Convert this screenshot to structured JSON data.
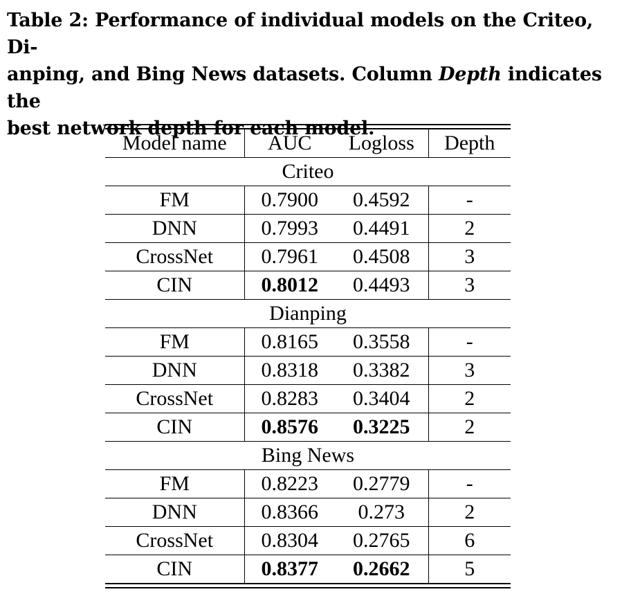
{
  "caption": {
    "line1": "Table 2: Performance of individual models on the Criteo, Di-",
    "line2_a": "anping, and Bing News datasets. Column ",
    "line2_b": "Depth",
    "line2_c": " indicates the",
    "line3": "best network depth for each model."
  },
  "table": {
    "headers": [
      "Model name",
      "AUC",
      "Logloss",
      "Depth"
    ],
    "groups": [
      {
        "name": "Criteo",
        "rows": [
          [
            "FM",
            "0.7900",
            "0.4592",
            "-"
          ],
          [
            "DNN",
            "0.7993",
            "0.4491",
            "2"
          ],
          [
            "CrossNet",
            "0.7961",
            "0.4508",
            "3"
          ],
          [
            "CIN",
            "0.8012",
            "0.4493",
            "3"
          ]
        ]
      },
      {
        "name": "Dianping",
        "rows": [
          [
            "FM",
            "0.8165",
            "0.3558",
            "-"
          ],
          [
            "DNN",
            "0.8318",
            "0.3382",
            "3"
          ],
          [
            "CrossNet",
            "0.8283",
            "0.3404",
            "2"
          ],
          [
            "CIN",
            "0.8576",
            "0.3225",
            "2"
          ]
        ]
      },
      {
        "name": "Bing News",
        "rows": [
          [
            "FM",
            "0.8223",
            "0.2779",
            "-"
          ],
          [
            "DNN",
            "0.8366",
            "0.273",
            "2"
          ],
          [
            "CrossNet",
            "0.8304",
            "0.2765",
            "6"
          ],
          [
            "CIN",
            "0.8377",
            "0.2662",
            "5"
          ]
        ]
      }
    ]
  }
}
